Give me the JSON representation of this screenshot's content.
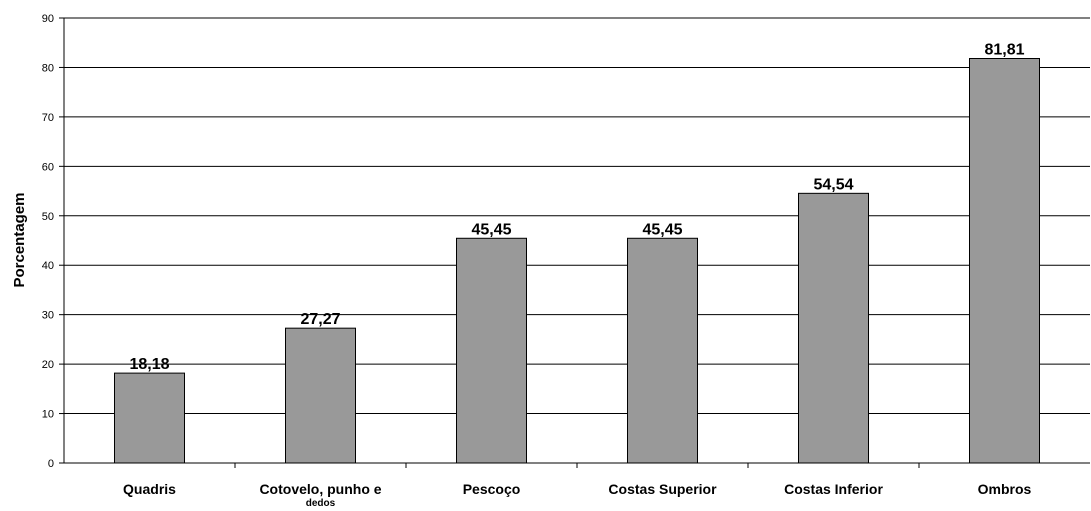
{
  "chart_data": {
    "type": "bar",
    "title": "",
    "xlabel": "",
    "ylabel": "Porcentagem",
    "ylim": [
      0,
      90
    ],
    "ytick_step": 10,
    "grid": true,
    "legend": "none",
    "categories": [
      [
        "Quadris"
      ],
      [
        "Cotovelo, punho e",
        "dedos"
      ],
      [
        "Pescoço"
      ],
      [
        "Costas Superior"
      ],
      [
        "Costas Inferior"
      ],
      [
        "Ombros"
      ]
    ],
    "values": [
      18.18,
      27.27,
      45.45,
      45.45,
      54.54,
      81.81
    ],
    "data_labels": [
      "18,18",
      "27,27",
      "45,45",
      "45,45",
      "54,54",
      "81,81"
    ],
    "bar_color": "#999999",
    "bar_edge_color": "#000000",
    "grid_color": "#000000"
  }
}
